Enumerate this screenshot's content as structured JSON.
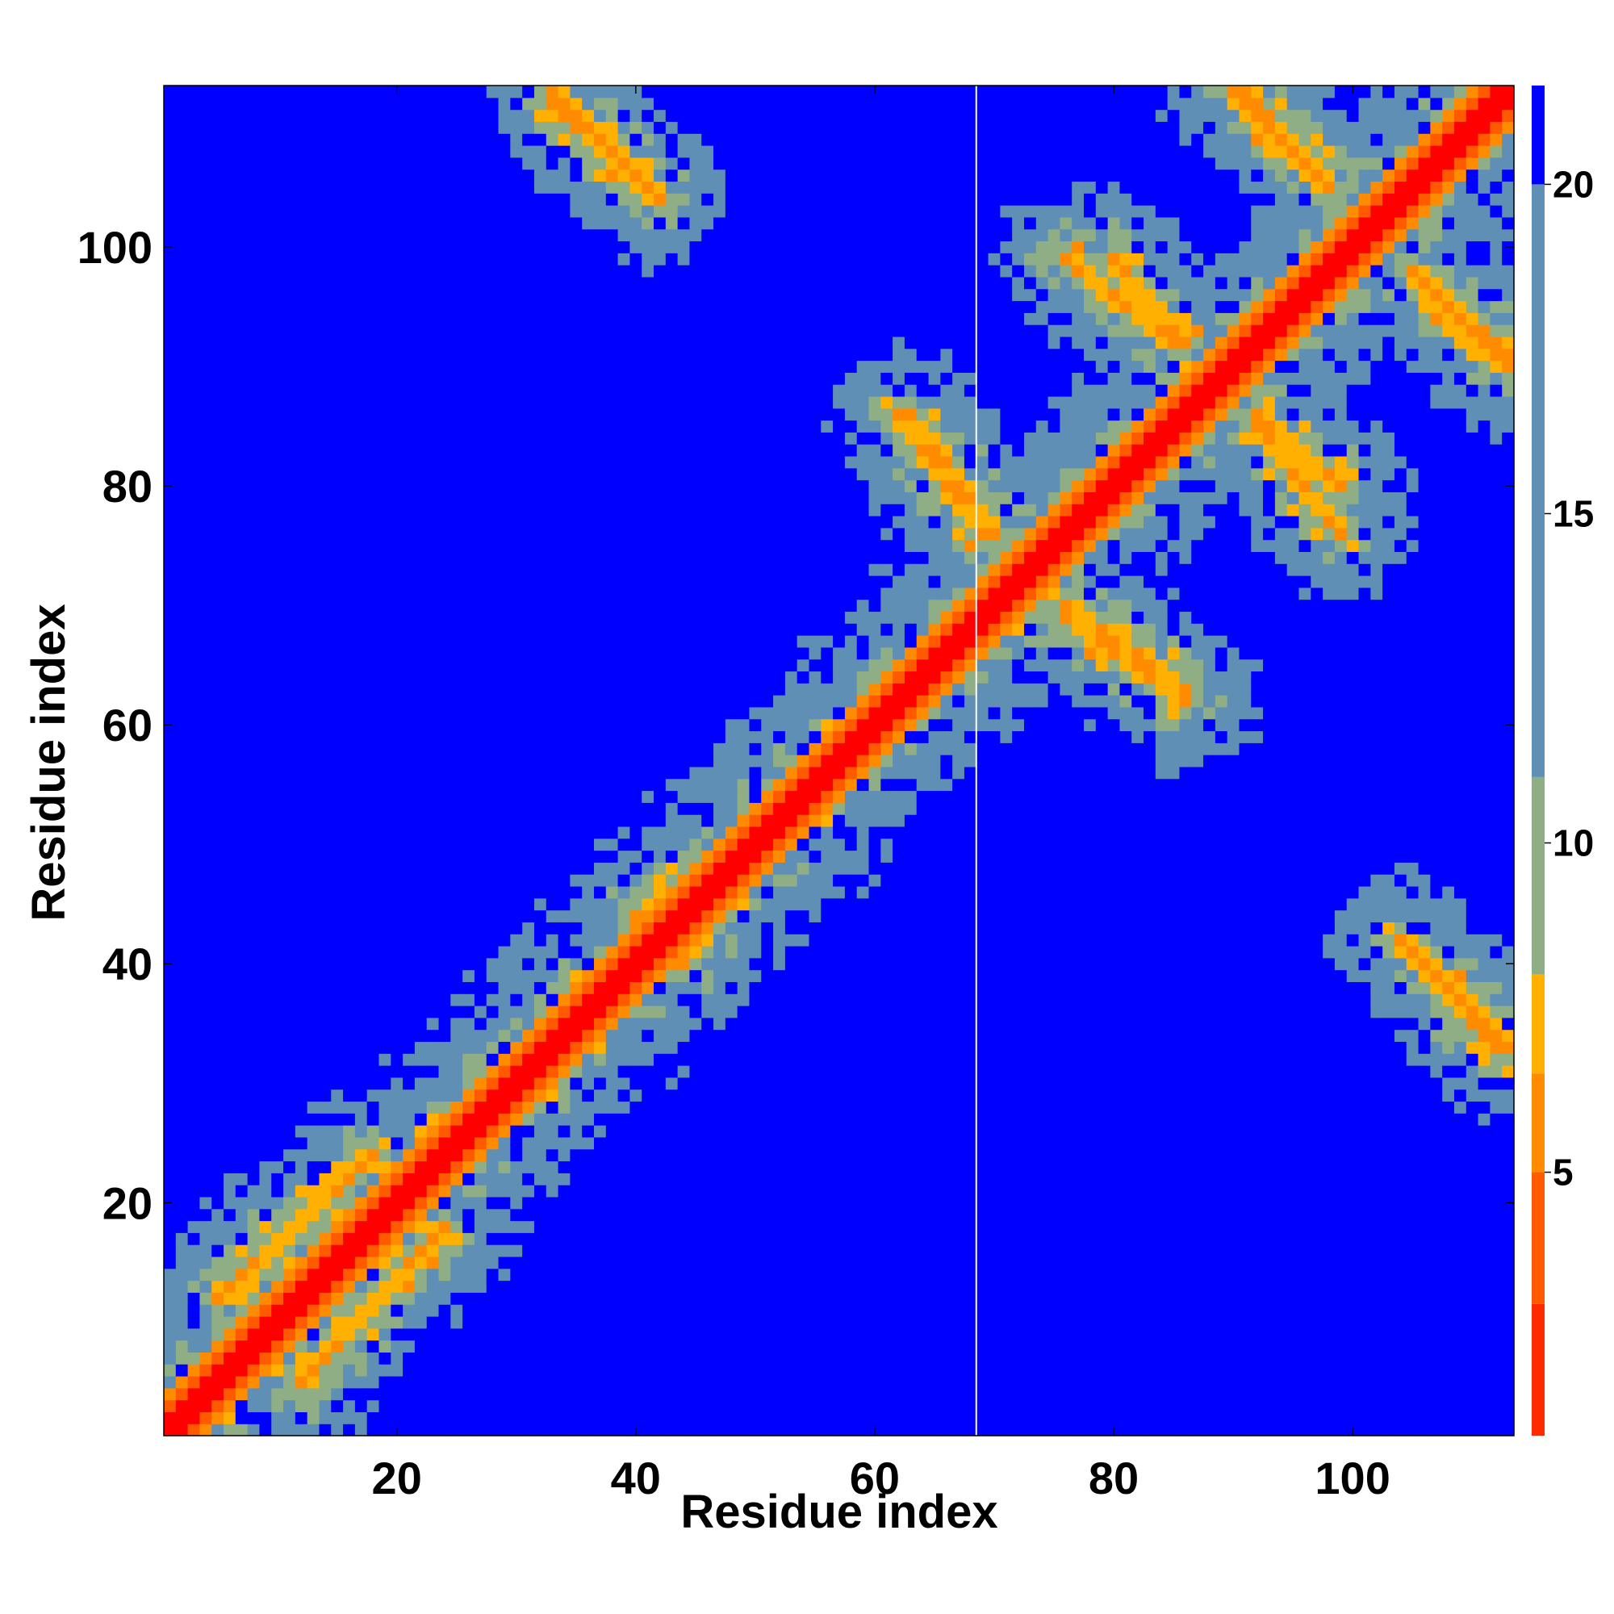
{
  "chart_data": {
    "type": "heatmap",
    "title": "",
    "xlabel": "Residue index",
    "ylabel": "Residue index",
    "xlim": [
      1,
      113
    ],
    "ylim": [
      1,
      113
    ],
    "x_ticks": [
      20,
      40,
      60,
      80,
      100
    ],
    "y_ticks": [
      20,
      40,
      60,
      80,
      100
    ],
    "colorbar": {
      "ticks": [
        5,
        10,
        15,
        20
      ],
      "range": [
        1,
        21.5
      ],
      "colors": [
        "#ff0000",
        "#ff2a00",
        "#ff5a00",
        "#ff8c00",
        "#ffb000",
        "#8fae86",
        "#5f8fb4",
        "#0000ff"
      ],
      "levels": [
        1,
        3,
        5,
        6.5,
        8,
        11,
        20,
        21.5
      ]
    },
    "divider_at_residue": 69,
    "structure": {
      "diagonal_contact_distance": 1.0,
      "contact_bands": [
        {
          "from": [
            62,
            86
          ],
          "to": [
            69,
            76
          ],
          "type": "antiparallel"
        },
        {
          "from": [
            76,
            70
          ],
          "to": [
            86,
            63
          ],
          "type": "antiparallel"
        },
        {
          "from": [
            80,
            99
          ],
          "to": [
            86,
            92
          ],
          "type": "antiparallel"
        },
        {
          "from": [
            92,
            85
          ],
          "to": [
            99,
            76
          ],
          "type": "antiparallel"
        },
        {
          "from": [
            33,
            113
          ],
          "to": [
            42,
            104
          ],
          "type": "antiparallel"
        },
        {
          "from": [
            91,
            113
          ],
          "to": [
            98,
            105
          ],
          "type": "antiparallel"
        },
        {
          "from": [
            105,
            98
          ],
          "to": [
            113,
            90
          ],
          "type": "antiparallel"
        },
        {
          "from": [
            104,
            42
          ],
          "to": [
            112,
            33
          ],
          "type": "antiparallel"
        },
        {
          "from": [
            5,
            12
          ],
          "to": [
            18,
            24
          ],
          "type": "parallel"
        },
        {
          "from": [
            40,
            44
          ],
          "to": [
            49,
            50
          ],
          "type": "parallel"
        }
      ]
    }
  }
}
